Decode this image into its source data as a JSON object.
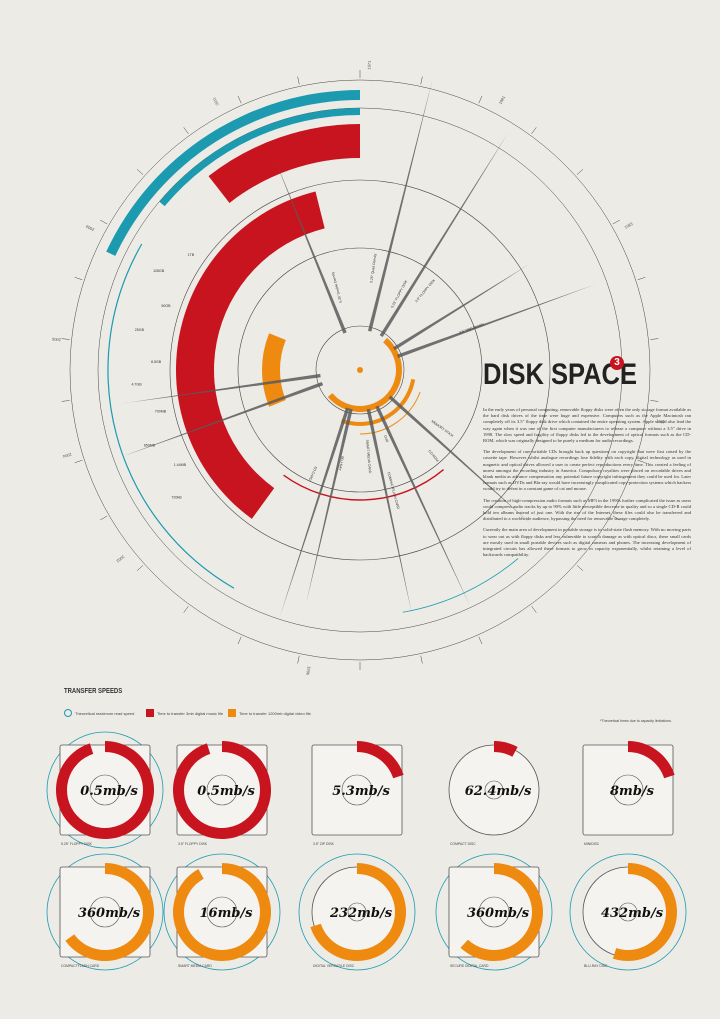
{
  "title": "DISK SPACE",
  "title_badge": "3",
  "paragraphs": [
    "In the early years of personal computing, removable floppy disks were often the only storage format available as the hard disk drives of the time were huge and expensive. Computers such as the Apple Macintosh ran completely off its 3.5\" floppy disk drive which contained the entire operating system. Apple would also lead the way again when it was one of the first computer manufacturers to release a computer without a 3.5\" drive in 1998. The slow speed and fragility of floppy disks led to the development of optical formats such as the CD-ROM, which was originally designed to be purely a medium for audio recordings.",
    "The development of rare-writable CDs brought back up questions on copyright that were first raised by the cassette tape. However whilst analogue recordings lose fidelity with each copy, digital technology as used in magnetic and optical drives allowed a user to create perfect reproductions every time. This created a feeling of unrest amongst the recording industry in America. Compulsory royalties were placed on recordable drives and blank media as advance compensation any potential future copyright infringement they could be used for. Later formats such as DVDs and Blu-ray would have increasingly complicated copy-protection systems which hackers would try to defeat in a constant game of cat and mouse.",
    "The creation of high-compression audio formats such as MP3 in the 1990s further complicated the issue as users could compress audio tracks by up to 90% with little perceptible decrease in quality and so a single CD-R could hold ten albums instead of just one. With the rise of the Internet, these files could also be transferred and distributed to a worldwide audience, bypassing the need for removable storage completely.",
    "Currently the main area of development in portable storage is in solid-state flash memory. With no moving parts to wear out as with floppy disks and less vulnerable to scratch damage as with optical discs, these small cards are mostly used in small portable devices such as digital cameras and phones. The increasing development of integrated circuits has allowed these formats to grow in capacity exponentially, whilst retaining a level of backwards compatibility."
  ],
  "transfer_title": "TRANSFER SPEEDS",
  "legend": {
    "max_read": "Theoretical maximum read speed",
    "music": "Time to transfer 3mb digital music file",
    "video": "Time to transfer 1200mb digital video file"
  },
  "footnote": "*Theoretical times due to capacity limitations.",
  "colors": {
    "background": "#ecebe6",
    "red": "#c8141e",
    "orange": "#ee8a10",
    "teal": "#1b9ab0",
    "gray": "#5a5a5a",
    "line": "#444444"
  },
  "radial": {
    "year_labels": [
      "1971",
      "1981",
      "1983",
      "1987",
      "1996",
      "2002",
      "2004",
      "2006",
      "2009",
      "2011"
    ],
    "format_labels": [
      "5.25\" FLOPPY DISK",
      "3.5\" FLOPPY DISK",
      "3.5\" High Density",
      "5.25\" Double Density",
      "5.25\" Quad Density",
      "CD-ROM",
      "DVD",
      "BLU-RAY",
      "COMPACTFLASH CARD",
      "SMART MEDIA CARD",
      "MEMORY STICK",
      "SD CARD"
    ],
    "capacity_labels": [
      "720kB",
      "1.44MB",
      "650MB",
      "700MB",
      "4.7GB",
      "8.5GB",
      "25GB",
      "50GB",
      "128GB",
      "1TB"
    ]
  },
  "chart_data": {
    "type": "pie",
    "title": "TRANSFER SPEEDS",
    "units": "mb/s",
    "categories": [
      "5.25\" FLOPPY DISK",
      "3.5\" FLOPPY DISK",
      "3.5\" ZIP DISK",
      "COMPACT DISC",
      "MINIDISC",
      "COMPACTFLASH CARD",
      "SMART MEDIA CARD",
      "DIGITAL VERSATILE DISC",
      "SECURE DIGITAL CARD",
      "BLU-RAY DISC"
    ],
    "values": [
      0.5,
      0.5,
      5.3,
      62.4,
      8,
      360,
      16,
      232,
      360,
      432
    ],
    "value_labels": [
      "0.5mb/s",
      "0.5mb/s",
      "5.3mb/s",
      "62.4mb/s",
      "8mb/s",
      "360mb/s",
      "16mb/s",
      "232mb/s",
      "360mb/s",
      "432mb/s"
    ],
    "ring_color": [
      "red",
      "red",
      "red",
      "red",
      "red",
      "orange",
      "orange",
      "orange",
      "orange",
      "orange"
    ],
    "ring_fraction": [
      0.95,
      0.95,
      0.2,
      0.08,
      0.2,
      0.65,
      0.92,
      0.7,
      0.62,
      0.55
    ],
    "max_read_circle": [
      true,
      false,
      false,
      false,
      false,
      true,
      true,
      true,
      true,
      true
    ],
    "legend": [
      "Theoretical maximum read speed",
      "Time to transfer 3mb digital music file",
      "Time to transfer 1200mb digital video file"
    ]
  }
}
